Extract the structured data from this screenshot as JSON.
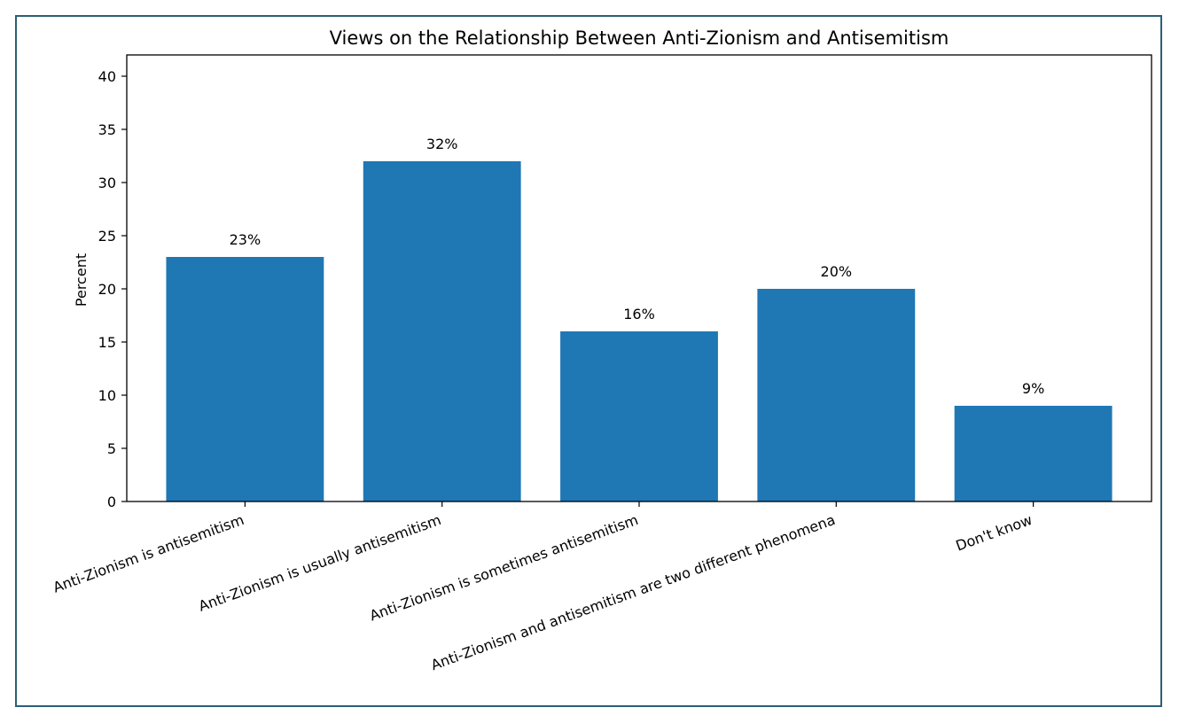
{
  "chart_data": {
    "type": "bar",
    "title": "Views on the Relationship Between Anti-Zionism and Antisemitism",
    "xlabel": "",
    "ylabel": "Percent",
    "categories": [
      "Anti-Zionism is antisemitism",
      "Anti-Zionism is usually antisemitism",
      "Anti-Zionism is sometimes antisemitism",
      "Anti-Zionism and antisemitism are two different phenomena",
      "Don't know"
    ],
    "values": [
      23,
      32,
      16,
      20,
      9
    ],
    "data_labels": [
      "23%",
      "32%",
      "16%",
      "20%",
      "9%"
    ],
    "ylim": [
      0,
      42
    ],
    "yticks": [
      0,
      5,
      10,
      15,
      20,
      25,
      30,
      35,
      40
    ],
    "grid": false,
    "bar_color": "#1f77b4"
  }
}
